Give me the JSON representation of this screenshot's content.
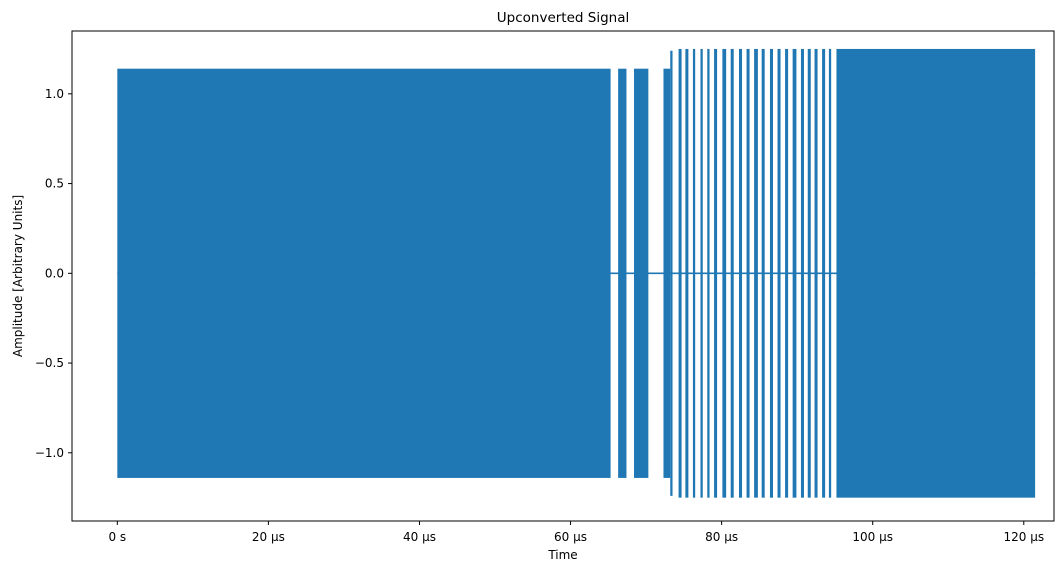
{
  "chart_data": {
    "type": "line",
    "title": "Upconverted Signal",
    "xlabel": "Time",
    "ylabel": "Amplitude [Arbitrary Units]",
    "xlim": [
      -6,
      124
    ],
    "ylim": [
      -1.38,
      1.35
    ],
    "x_ticks": [
      {
        "value": 0,
        "label": "0 s"
      },
      {
        "value": 20,
        "label": "20 µs"
      },
      {
        "value": 40,
        "label": "40 µs"
      },
      {
        "value": 60,
        "label": "60 µs"
      },
      {
        "value": 80,
        "label": "80 µs"
      },
      {
        "value": 100,
        "label": "100 µs"
      },
      {
        "value": 120,
        "label": "120 µs"
      }
    ],
    "y_ticks": [
      {
        "value": 1.0,
        "label": "1.0"
      },
      {
        "value": 0.5,
        "label": "0.5"
      },
      {
        "value": 0.0,
        "label": "0.0"
      },
      {
        "value": -0.5,
        "label": "−0.5"
      },
      {
        "value": -1.0,
        "label": "−1.0"
      }
    ],
    "grid": false,
    "series": [
      {
        "color": "#1f77b4",
        "baseline": 0.0,
        "x_end": 121.5,
        "envelope_segments": [
          {
            "x_start": 0.0,
            "x_end": 65.3,
            "ymin": -1.14,
            "ymax": 1.14
          },
          {
            "x_start": 66.3,
            "x_end": 67.4,
            "ymin": -1.14,
            "ymax": 1.14
          },
          {
            "x_start": 68.4,
            "x_end": 70.3,
            "ymin": -1.14,
            "ymax": 1.14
          },
          {
            "x_start": 72.3,
            "x_end": 73.2,
            "ymin": -1.14,
            "ymax": 1.14
          },
          {
            "x_start": 73.2,
            "x_end": 73.5,
            "ymin": -1.24,
            "ymax": 1.24
          },
          {
            "x_start": 74.3,
            "x_end": 74.7,
            "ymin": -1.25,
            "ymax": 1.25
          },
          {
            "x_start": 75.2,
            "x_end": 75.6,
            "ymin": -1.25,
            "ymax": 1.25
          },
          {
            "x_start": 76.2,
            "x_end": 76.5,
            "ymin": -1.25,
            "ymax": 1.25
          },
          {
            "x_start": 77.2,
            "x_end": 77.5,
            "ymin": -1.25,
            "ymax": 1.25
          },
          {
            "x_start": 78.1,
            "x_end": 78.4,
            "ymin": -1.25,
            "ymax": 1.25
          },
          {
            "x_start": 79.0,
            "x_end": 79.4,
            "ymin": -1.25,
            "ymax": 1.25
          },
          {
            "x_start": 80.1,
            "x_end": 80.6,
            "ymin": -1.25,
            "ymax": 1.25
          },
          {
            "x_start": 81.2,
            "x_end": 81.6,
            "ymin": -1.25,
            "ymax": 1.25
          },
          {
            "x_start": 82.3,
            "x_end": 82.7,
            "ymin": -1.25,
            "ymax": 1.25
          },
          {
            "x_start": 83.3,
            "x_end": 83.7,
            "ymin": -1.25,
            "ymax": 1.25
          },
          {
            "x_start": 84.3,
            "x_end": 84.8,
            "ymin": -1.25,
            "ymax": 1.25
          },
          {
            "x_start": 85.3,
            "x_end": 85.7,
            "ymin": -1.25,
            "ymax": 1.25
          },
          {
            "x_start": 86.4,
            "x_end": 86.8,
            "ymin": -1.25,
            "ymax": 1.25
          },
          {
            "x_start": 87.4,
            "x_end": 87.8,
            "ymin": -1.25,
            "ymax": 1.25
          },
          {
            "x_start": 88.4,
            "x_end": 88.8,
            "ymin": -1.25,
            "ymax": 1.25
          },
          {
            "x_start": 89.4,
            "x_end": 89.9,
            "ymin": -1.25,
            "ymax": 1.25
          },
          {
            "x_start": 90.5,
            "x_end": 90.9,
            "ymin": -1.25,
            "ymax": 1.25
          },
          {
            "x_start": 91.4,
            "x_end": 91.8,
            "ymin": -1.25,
            "ymax": 1.25
          },
          {
            "x_start": 92.3,
            "x_end": 92.7,
            "ymin": -1.25,
            "ymax": 1.25
          },
          {
            "x_start": 93.3,
            "x_end": 93.7,
            "ymin": -1.25,
            "ymax": 1.25
          },
          {
            "x_start": 94.2,
            "x_end": 94.5,
            "ymin": -1.25,
            "ymax": 1.25
          },
          {
            "x_start": 95.2,
            "x_end": 121.5,
            "ymin": -1.25,
            "ymax": 1.25
          }
        ]
      }
    ]
  }
}
